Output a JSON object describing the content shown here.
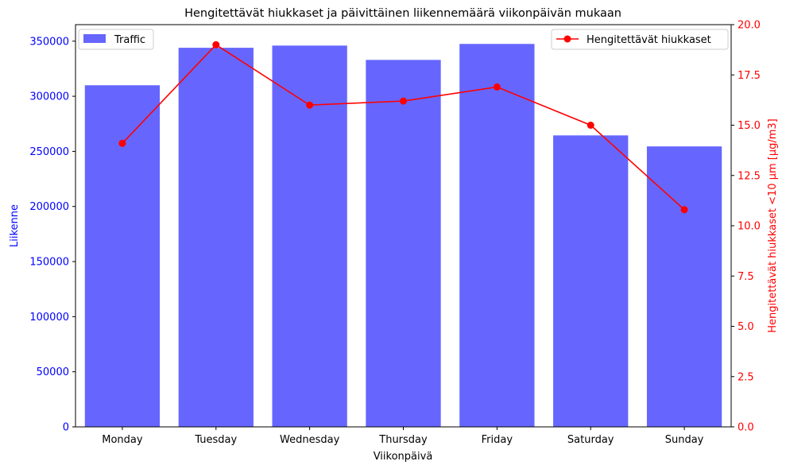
{
  "chart_data": {
    "type": "bar",
    "title": "Hengitettävät hiukkaset ja päivittäinen liikennemäärä viikonpäivän mukaan",
    "xlabel": "Viikonpäivä",
    "ylabel_left": "Liikenne",
    "ylabel_right": "Hengitettävät hiukkaset <10 µm [µg/m3]",
    "categories": [
      "Monday",
      "Tuesday",
      "Wednesday",
      "Thursday",
      "Friday",
      "Saturday",
      "Sunday"
    ],
    "ylim_left": [
      0,
      365000
    ],
    "ylim_right": [
      0,
      20
    ],
    "yticks_left": [
      "0",
      "50000",
      "100000",
      "150000",
      "200000",
      "250000",
      "300000",
      "350000"
    ],
    "yticks_right": [
      "0.0",
      "2.5",
      "5.0",
      "7.5",
      "10.0",
      "12.5",
      "15.0",
      "17.5",
      "20.0"
    ],
    "grid": false,
    "series": [
      {
        "name": "Traffic",
        "kind": "bar",
        "axis": "left",
        "color": "#6666ff",
        "values": [
          310000,
          344000,
          346000,
          333000,
          347500,
          264500,
          254500
        ]
      },
      {
        "name": "Hengitettävät hiukkaset",
        "kind": "line",
        "axis": "right",
        "color": "#ff0000",
        "values": [
          14.1,
          19.0,
          16.0,
          16.2,
          16.9,
          15.0,
          10.8
        ]
      }
    ],
    "legends": {
      "bar": "top-left",
      "line": "top-right"
    },
    "colors": {
      "left_axis": "#0000ff",
      "right_axis": "#ff0000"
    }
  }
}
